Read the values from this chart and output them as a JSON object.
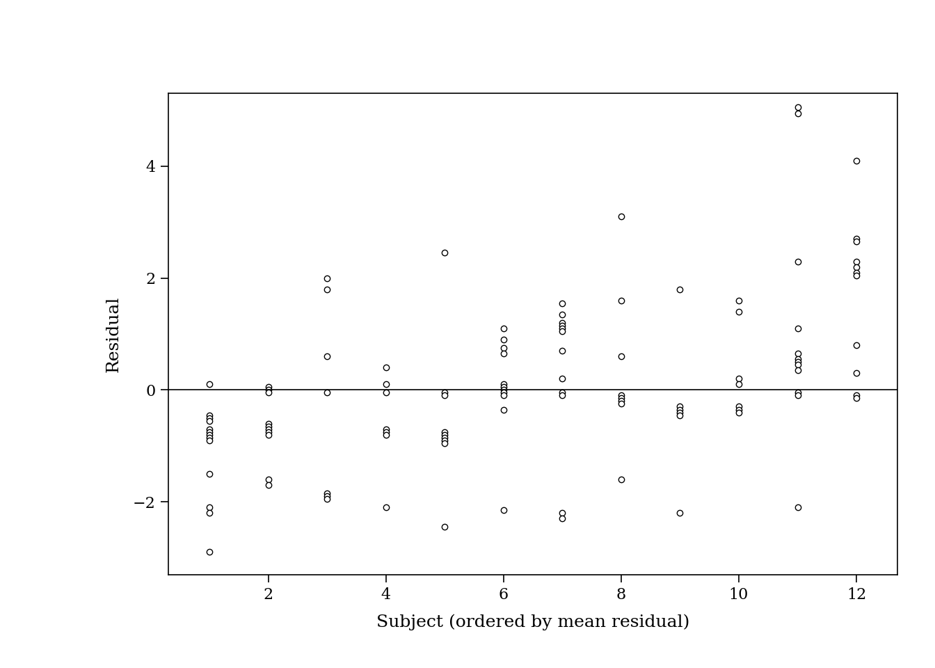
{
  "title": "",
  "xlabel": "Subject (ordered by mean residual)",
  "ylabel": "Residual",
  "xlim": [
    0.3,
    12.7
  ],
  "ylim": [
    -3.3,
    5.3
  ],
  "yticks": [
    -2,
    0,
    2,
    4
  ],
  "xticks": [
    2,
    4,
    6,
    8,
    10,
    12
  ],
  "hline_y": 0,
  "background_color": "#ffffff",
  "points": [
    [
      1,
      0.1
    ],
    [
      1,
      -0.45
    ],
    [
      1,
      -0.5
    ],
    [
      1,
      -0.55
    ],
    [
      1,
      -0.7
    ],
    [
      1,
      -0.75
    ],
    [
      1,
      -0.8
    ],
    [
      1,
      -0.85
    ],
    [
      1,
      -0.9
    ],
    [
      1,
      -1.5
    ],
    [
      1,
      -2.1
    ],
    [
      1,
      -2.2
    ],
    [
      1,
      -2.9
    ],
    [
      2,
      0.05
    ],
    [
      2,
      0.0
    ],
    [
      2,
      -0.05
    ],
    [
      2,
      -0.6
    ],
    [
      2,
      -0.65
    ],
    [
      2,
      -0.7
    ],
    [
      2,
      -0.75
    ],
    [
      2,
      -0.8
    ],
    [
      2,
      -1.6
    ],
    [
      2,
      -1.7
    ],
    [
      3,
      2.0
    ],
    [
      3,
      1.8
    ],
    [
      3,
      0.6
    ],
    [
      3,
      -0.05
    ],
    [
      3,
      -1.85
    ],
    [
      3,
      -1.9
    ],
    [
      3,
      -1.95
    ],
    [
      4,
      0.4
    ],
    [
      4,
      0.1
    ],
    [
      4,
      -0.05
    ],
    [
      4,
      -0.7
    ],
    [
      4,
      -0.75
    ],
    [
      4,
      -0.8
    ],
    [
      4,
      -2.1
    ],
    [
      5,
      2.45
    ],
    [
      5,
      -0.05
    ],
    [
      5,
      -0.1
    ],
    [
      5,
      -0.75
    ],
    [
      5,
      -0.8
    ],
    [
      5,
      -0.85
    ],
    [
      5,
      -0.9
    ],
    [
      5,
      -0.95
    ],
    [
      5,
      -2.45
    ],
    [
      6,
      1.1
    ],
    [
      6,
      0.9
    ],
    [
      6,
      0.75
    ],
    [
      6,
      0.65
    ],
    [
      6,
      0.1
    ],
    [
      6,
      0.05
    ],
    [
      6,
      0.0
    ],
    [
      6,
      -0.05
    ],
    [
      6,
      -0.1
    ],
    [
      6,
      -0.35
    ],
    [
      6,
      -2.15
    ],
    [
      7,
      1.55
    ],
    [
      7,
      1.35
    ],
    [
      7,
      1.2
    ],
    [
      7,
      1.15
    ],
    [
      7,
      1.1
    ],
    [
      7,
      1.05
    ],
    [
      7,
      0.7
    ],
    [
      7,
      0.2
    ],
    [
      7,
      -0.05
    ],
    [
      7,
      -0.1
    ],
    [
      7,
      -2.2
    ],
    [
      7,
      -2.3
    ],
    [
      8,
      3.1
    ],
    [
      8,
      1.6
    ],
    [
      8,
      0.6
    ],
    [
      8,
      -0.1
    ],
    [
      8,
      -0.15
    ],
    [
      8,
      -0.2
    ],
    [
      8,
      -0.25
    ],
    [
      8,
      -1.6
    ],
    [
      9,
      1.8
    ],
    [
      9,
      -0.3
    ],
    [
      9,
      -0.35
    ],
    [
      9,
      -0.4
    ],
    [
      9,
      -0.45
    ],
    [
      9,
      -2.2
    ],
    [
      10,
      1.6
    ],
    [
      10,
      1.4
    ],
    [
      10,
      0.2
    ],
    [
      10,
      0.1
    ],
    [
      10,
      -0.3
    ],
    [
      10,
      -0.35
    ],
    [
      10,
      -0.4
    ],
    [
      11,
      5.05
    ],
    [
      11,
      4.95
    ],
    [
      11,
      2.3
    ],
    [
      11,
      1.1
    ],
    [
      11,
      0.65
    ],
    [
      11,
      0.55
    ],
    [
      11,
      0.5
    ],
    [
      11,
      0.45
    ],
    [
      11,
      0.35
    ],
    [
      11,
      -0.05
    ],
    [
      11,
      -0.1
    ],
    [
      11,
      -2.1
    ],
    [
      12,
      4.1
    ],
    [
      12,
      2.7
    ],
    [
      12,
      2.65
    ],
    [
      12,
      2.3
    ],
    [
      12,
      2.2
    ],
    [
      12,
      2.1
    ],
    [
      12,
      2.05
    ],
    [
      12,
      0.8
    ],
    [
      12,
      0.3
    ],
    [
      12,
      -0.1
    ],
    [
      12,
      -0.15
    ]
  ],
  "marker_size": 6,
  "marker_linewidth": 1.0,
  "label_fontsize": 18,
  "tick_fontsize": 16
}
